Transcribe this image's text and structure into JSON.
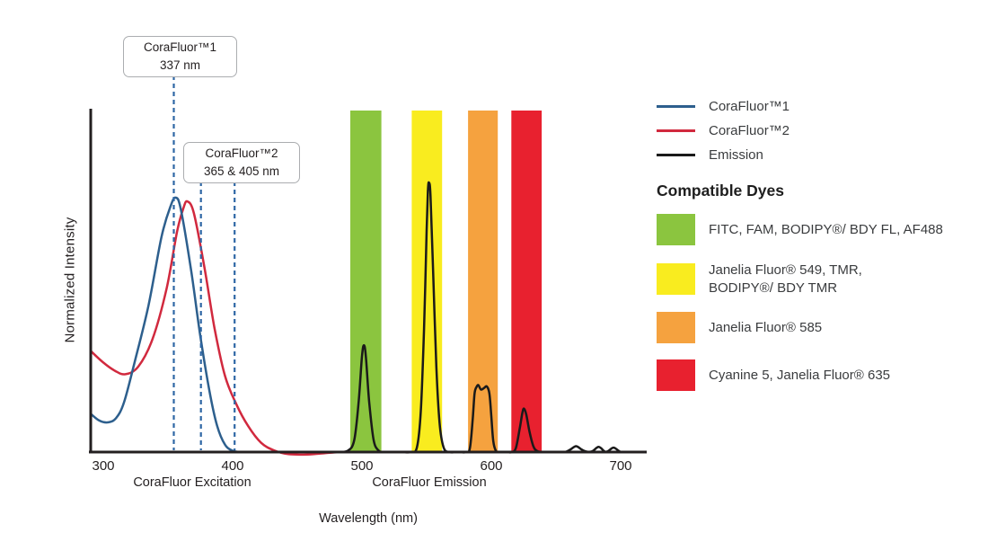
{
  "chart_data": {
    "type": "line",
    "title": "",
    "xlabel": "Wavelength (nm)",
    "ylabel": "Normalized Intensity",
    "x_axis": {
      "min": 290,
      "max": 715,
      "ticks": [
        300,
        400,
        500,
        600,
        700
      ]
    },
    "ylim": [
      0,
      1
    ],
    "grid": false,
    "legend_position": "right",
    "section_labels": {
      "excitation": "CoraFluor Excitation",
      "emission": "CoraFluor Emission"
    },
    "bands": [
      {
        "id": "green",
        "nm": [
          491,
          515
        ],
        "color": "#8BC53F"
      },
      {
        "id": "yellow",
        "nm": [
          538.5,
          562
        ],
        "color": "#F9EC1F"
      },
      {
        "id": "orange",
        "nm": [
          582,
          605
        ],
        "color": "#F5A23F"
      },
      {
        "id": "red",
        "nm": [
          615.5,
          639
        ],
        "color": "#E8212F"
      }
    ],
    "series": [
      {
        "name": "CoraFluor™1",
        "color": "#2D5F8D",
        "role": "excitation",
        "points": [
          [
            290,
            0.113
          ],
          [
            297,
            0.092
          ],
          [
            304,
            0.087
          ],
          [
            310,
            0.1
          ],
          [
            316,
            0.145
          ],
          [
            324,
            0.26
          ],
          [
            335,
            0.43
          ],
          [
            345,
            0.63
          ],
          [
            352,
            0.72
          ],
          [
            356,
            0.745
          ],
          [
            360,
            0.71
          ],
          [
            368,
            0.53
          ],
          [
            375,
            0.34
          ],
          [
            382,
            0.18
          ],
          [
            388,
            0.077
          ],
          [
            394,
            0.022
          ],
          [
            400,
            0.004
          ],
          [
            406,
            0
          ],
          [
            412,
            0
          ]
        ]
      },
      {
        "name": "CoraFluor™2",
        "color": "#D1293E",
        "role": "excitation",
        "points": [
          [
            290,
            0.297
          ],
          [
            300,
            0.262
          ],
          [
            309,
            0.238
          ],
          [
            317,
            0.228
          ],
          [
            327,
            0.25
          ],
          [
            338,
            0.33
          ],
          [
            349,
            0.48
          ],
          [
            357,
            0.645
          ],
          [
            362,
            0.715
          ],
          [
            365,
            0.734
          ],
          [
            370,
            0.7
          ],
          [
            378,
            0.545
          ],
          [
            386,
            0.363
          ],
          [
            394,
            0.224
          ],
          [
            403,
            0.139
          ],
          [
            412,
            0.076
          ],
          [
            422,
            0.027
          ],
          [
            432,
            0.005
          ],
          [
            443,
            -0.006
          ],
          [
            458,
            -0.007
          ],
          [
            472,
            -0.003
          ],
          [
            483,
            0
          ],
          [
            490,
            0
          ]
        ]
      },
      {
        "name": "Emission",
        "color": "#1A1A1A",
        "role": "emission",
        "points": [
          [
            480,
            0
          ],
          [
            489,
            0.004
          ],
          [
            494,
            0.035
          ],
          [
            497.5,
            0.15
          ],
          [
            500,
            0.28
          ],
          [
            501.5,
            0.313
          ],
          [
            503,
            0.28
          ],
          [
            505.5,
            0.15
          ],
          [
            509,
            0.035
          ],
          [
            513,
            0.004
          ],
          [
            518,
            0
          ],
          [
            530,
            0
          ],
          [
            538,
            0
          ],
          [
            542.5,
            0.014
          ],
          [
            545.5,
            0.12
          ],
          [
            548,
            0.36
          ],
          [
            550,
            0.65
          ],
          [
            551,
            0.765
          ],
          [
            551.8,
            0.789
          ],
          [
            553,
            0.75
          ],
          [
            555,
            0.53
          ],
          [
            557.5,
            0.25
          ],
          [
            560,
            0.085
          ],
          [
            563,
            0.015
          ],
          [
            567,
            0
          ],
          [
            575,
            0
          ],
          [
            581,
            0
          ],
          [
            583.5,
            0.012
          ],
          [
            585.5,
            0.09
          ],
          [
            587,
            0.17
          ],
          [
            588.5,
            0.19
          ],
          [
            590,
            0.196
          ],
          [
            592,
            0.183
          ],
          [
            594.5,
            0.188
          ],
          [
            596.5,
            0.192
          ],
          [
            598.5,
            0.172
          ],
          [
            600,
            0.105
          ],
          [
            601.5,
            0.032
          ],
          [
            603.5,
            0.004
          ],
          [
            606,
            0
          ],
          [
            612,
            0
          ],
          [
            616,
            0
          ],
          [
            619,
            0.012
          ],
          [
            622,
            0.07
          ],
          [
            624,
            0.115
          ],
          [
            625.3,
            0.127
          ],
          [
            627,
            0.11
          ],
          [
            629.5,
            0.06
          ],
          [
            632.5,
            0.017
          ],
          [
            635.5,
            0.003
          ],
          [
            640,
            0
          ],
          [
            650,
            0
          ],
          [
            657,
            0
          ],
          [
            661,
            0.007
          ],
          [
            665.5,
            0.017
          ],
          [
            670,
            0.007
          ],
          [
            674,
            0.001
          ],
          [
            678,
            0.002
          ],
          [
            683,
            0.015
          ],
          [
            687.5,
            0.002
          ],
          [
            690,
            0.002
          ],
          [
            694.5,
            0.013
          ],
          [
            699,
            0.002
          ],
          [
            702,
            0
          ],
          [
            708,
            0
          ]
        ]
      }
    ],
    "callouts": [
      {
        "label": "CoraFluor™1",
        "sublabel": "337 nm",
        "marker_nm": [
          354.5
        ]
      },
      {
        "label": "CoraFluor™2",
        "sublabel": "365 & 405 nm",
        "marker_nm": [
          375.5,
          401.5
        ]
      }
    ],
    "marker_color": "#2F67A5"
  },
  "legend": {
    "items": [
      {
        "label": "CoraFluor™1",
        "color": "#2D5F8D"
      },
      {
        "label": "CoraFluor™2",
        "color": "#D1293E"
      },
      {
        "label": "Emission",
        "color": "#1A1A1A"
      }
    ]
  },
  "dyes_section": {
    "heading": "Compatible Dyes",
    "items": [
      {
        "color": "#8BC53F",
        "label": "FITC, FAM, BODIPY®/ BDY FL, AF488"
      },
      {
        "color": "#F9EC1F",
        "label": "Janelia Fluor® 549, TMR,\nBODIPY®/ BDY TMR"
      },
      {
        "color": "#F5A23F",
        "label": "Janelia Fluor® 585"
      },
      {
        "color": "#E8212F",
        "label": "Cyanine 5, Janelia Fluor® 635"
      }
    ]
  },
  "axis": {
    "x_label": "Wavelength (nm)",
    "y_label": "Normalized Intensity",
    "excitation_label": "CoraFluor Excitation",
    "emission_label": "CoraFluor Emission"
  }
}
